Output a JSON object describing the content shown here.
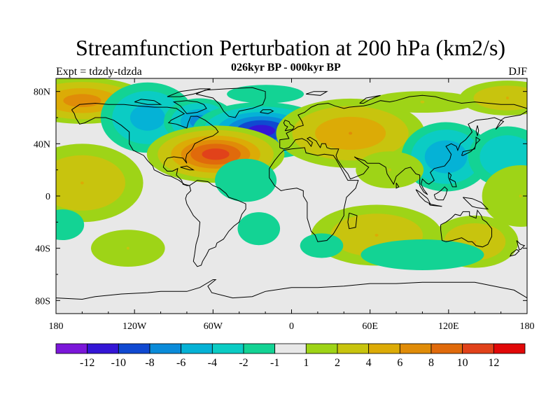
{
  "chart_data": {
    "type": "heatmap",
    "title": "Streamfunction Perturbation at 200 hPa (km2/s)",
    "subtitle": "026kyr BP - 000kyr BP",
    "left_label": "Expt = tdzdy-tdzda",
    "right_label": "DJF",
    "xlim": [
      -180,
      180
    ],
    "ylim": [
      -90,
      90
    ],
    "x_ticks": [
      -180,
      -120,
      -60,
      0,
      60,
      120,
      180
    ],
    "x_tick_labels": [
      "180",
      "120W",
      "60W",
      "0",
      "60E",
      "120E",
      "180"
    ],
    "y_ticks": [
      80,
      40,
      0,
      -40,
      -80
    ],
    "y_tick_labels": [
      "80N",
      "40N",
      "0",
      "40S",
      "80S"
    ],
    "colorbar": {
      "levels": [
        -14,
        -12,
        -10,
        -8,
        -6,
        -4,
        -2,
        -1,
        1,
        2,
        4,
        6,
        8,
        10,
        12,
        14
      ],
      "labels": [
        "-12",
        "-10",
        "-8",
        "-6",
        "-4",
        "-2",
        "-1",
        "1",
        "2",
        "4",
        "6",
        "8",
        "10",
        "12"
      ],
      "colors": [
        "#7b17d9",
        "#3416d6",
        "#1049d1",
        "#0a8bd9",
        "#05b2d6",
        "#0bccc4",
        "#13d394",
        "#e8e8e8",
        "#9ed417",
        "#c8c40e",
        "#dcab06",
        "#e08c08",
        "#e06a0b",
        "#e1421a",
        "#e10808"
      ]
    },
    "anomaly_centers": [
      {
        "lon": -160,
        "lat": 73,
        "value": 7,
        "sx": 26,
        "sy": 9
      },
      {
        "lon": -110,
        "lat": 60,
        "value": -5,
        "sx": 20,
        "sy": 15
      },
      {
        "lon": -70,
        "lat": 57,
        "value": -7,
        "sx": 14,
        "sy": 9
      },
      {
        "lon": -23,
        "lat": 50,
        "value": -11,
        "sx": 24,
        "sy": 10
      },
      {
        "lon": -58,
        "lat": 32,
        "value": 11,
        "sx": 24,
        "sy": 10
      },
      {
        "lon": -20,
        "lat": 78,
        "value": -2,
        "sx": 25,
        "sy": 6
      },
      {
        "lon": 45,
        "lat": 48,
        "value": 6,
        "sx": 30,
        "sy": 14
      },
      {
        "lon": 100,
        "lat": 72,
        "value": 2,
        "sx": 35,
        "sy": 7
      },
      {
        "lon": 165,
        "lat": 75,
        "value": 4,
        "sx": 22,
        "sy": 8
      },
      {
        "lon": 118,
        "lat": 30,
        "value": -6,
        "sx": 18,
        "sy": 14
      },
      {
        "lon": 165,
        "lat": 30,
        "value": -4,
        "sx": 18,
        "sy": 14
      },
      {
        "lon": 75,
        "lat": 20,
        "value": 2,
        "sx": 22,
        "sy": 12
      },
      {
        "lon": -160,
        "lat": 10,
        "value": 4,
        "sx": 28,
        "sy": 18
      },
      {
        "lon": -175,
        "lat": -22,
        "value": -2,
        "sx": 14,
        "sy": 10
      },
      {
        "lon": -125,
        "lat": -40,
        "value": 2,
        "sx": 24,
        "sy": 12
      },
      {
        "lon": -35,
        "lat": 12,
        "value": -2,
        "sx": 20,
        "sy": 14
      },
      {
        "lon": -25,
        "lat": -25,
        "value": -1.5,
        "sx": 18,
        "sy": 14
      },
      {
        "lon": 65,
        "lat": -30,
        "value": 4,
        "sx": 30,
        "sy": 14
      },
      {
        "lon": 23,
        "lat": -38,
        "value": -2,
        "sx": 14,
        "sy": 8
      },
      {
        "lon": 140,
        "lat": -35,
        "value": 4,
        "sx": 20,
        "sy": 12
      },
      {
        "lon": 100,
        "lat": -45,
        "value": -2,
        "sx": 40,
        "sy": 10
      },
      {
        "lon": 175,
        "lat": 0,
        "value": 2,
        "sx": 25,
        "sy": 20
      }
    ]
  }
}
